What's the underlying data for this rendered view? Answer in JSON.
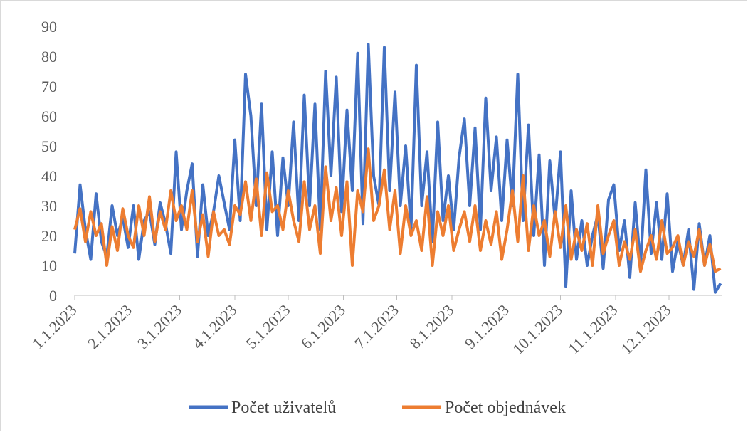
{
  "chart_data": {
    "type": "line",
    "x": [
      0,
      3,
      6,
      9,
      12,
      15,
      18,
      21,
      24,
      27,
      30,
      33,
      36,
      39,
      42,
      45,
      48,
      51,
      54,
      57,
      60,
      63,
      66,
      69,
      72,
      75,
      78,
      81,
      84,
      87,
      90,
      93,
      96,
      99,
      102,
      105,
      108,
      111,
      114,
      117,
      120,
      123,
      126,
      129,
      132,
      135,
      138,
      141,
      144,
      147,
      150,
      153,
      156,
      159,
      162,
      165,
      168,
      171,
      174,
      177,
      180,
      183,
      186,
      189,
      192,
      195,
      198,
      201,
      204,
      207,
      210,
      213,
      216,
      219,
      222,
      225,
      228,
      231,
      234,
      237,
      240,
      243,
      246,
      249,
      252,
      255,
      258,
      261,
      264,
      267,
      270,
      273,
      276,
      279,
      282,
      285,
      288,
      291,
      294,
      297,
      300,
      303,
      306,
      309,
      312,
      315,
      318,
      321,
      324,
      327,
      330,
      333,
      336,
      339,
      342,
      345,
      348,
      351,
      354,
      357,
      360,
      363
    ],
    "series": [
      {
        "name": "Počet uživatelů",
        "color": "#4472c4",
        "values": [
          14,
          37,
          22,
          12,
          34,
          18,
          13,
          30,
          20,
          26,
          16,
          30,
          12,
          25,
          28,
          17,
          31,
          24,
          14,
          48,
          22,
          35,
          44,
          13,
          37,
          20,
          28,
          40,
          31,
          22,
          52,
          25,
          74,
          60,
          30,
          64,
          22,
          48,
          20,
          46,
          30,
          58,
          25,
          67,
          30,
          64,
          22,
          75,
          40,
          73,
          28,
          62,
          35,
          81,
          24,
          84,
          40,
          30,
          83,
          35,
          68,
          30,
          50,
          22,
          77,
          30,
          48,
          18,
          58,
          25,
          40,
          22,
          46,
          59,
          30,
          56,
          22,
          66,
          35,
          53,
          25,
          52,
          30,
          74,
          25,
          57,
          20,
          47,
          10,
          45,
          25,
          48,
          3,
          35,
          12,
          25,
          10,
          20,
          27,
          9,
          32,
          37,
          15,
          25,
          6,
          31,
          10,
          42,
          14,
          31,
          12,
          34,
          8,
          18,
          10,
          22,
          2,
          24,
          10,
          20,
          1,
          4
        ]
      },
      {
        "name": "Počet objednávek",
        "color": "#ed7d31",
        "values": [
          22,
          29,
          18,
          28,
          20,
          24,
          10,
          23,
          15,
          29,
          20,
          16,
          30,
          20,
          33,
          18,
          28,
          22,
          35,
          25,
          30,
          22,
          35,
          18,
          27,
          13,
          28,
          20,
          22,
          17,
          30,
          27,
          38,
          25,
          39,
          20,
          41,
          28,
          30,
          22,
          35,
          25,
          18,
          38,
          22,
          30,
          14,
          43,
          25,
          36,
          20,
          38,
          10,
          35,
          28,
          49,
          25,
          30,
          42,
          22,
          35,
          14,
          30,
          20,
          25,
          15,
          33,
          10,
          28,
          20,
          30,
          15,
          22,
          28,
          18,
          30,
          15,
          25,
          17,
          28,
          12,
          22,
          35,
          18,
          40,
          15,
          30,
          20,
          25,
          13,
          28,
          16,
          30,
          12,
          22,
          15,
          24,
          10,
          30,
          14,
          20,
          25,
          10,
          18,
          12,
          22,
          8,
          15,
          20,
          12,
          25,
          14,
          16,
          20,
          10,
          18,
          13,
          22,
          10,
          17,
          8,
          9
        ]
      }
    ],
    "xlim": [
      0,
      364
    ],
    "xticks": [
      {
        "value": 0,
        "label": "1.1.2023"
      },
      {
        "value": 31,
        "label": "2.1.2023"
      },
      {
        "value": 59,
        "label": "3.1.2023"
      },
      {
        "value": 90,
        "label": "4.1.2023"
      },
      {
        "value": 120,
        "label": "5.1.2023"
      },
      {
        "value": 151,
        "label": "6.1.2023"
      },
      {
        "value": 181,
        "label": "7.1.2023"
      },
      {
        "value": 212,
        "label": "8.1.2023"
      },
      {
        "value": 243,
        "label": "9.1.2023"
      },
      {
        "value": 273,
        "label": "10.1.2023"
      },
      {
        "value": 304,
        "label": "11.1.2023"
      },
      {
        "value": 334,
        "label": "12.1.2023"
      }
    ],
    "ylim": [
      0,
      90
    ],
    "yticks": [
      0,
      10,
      20,
      30,
      40,
      50,
      60,
      70,
      80,
      90
    ],
    "grid": false,
    "legend": "bottom"
  }
}
